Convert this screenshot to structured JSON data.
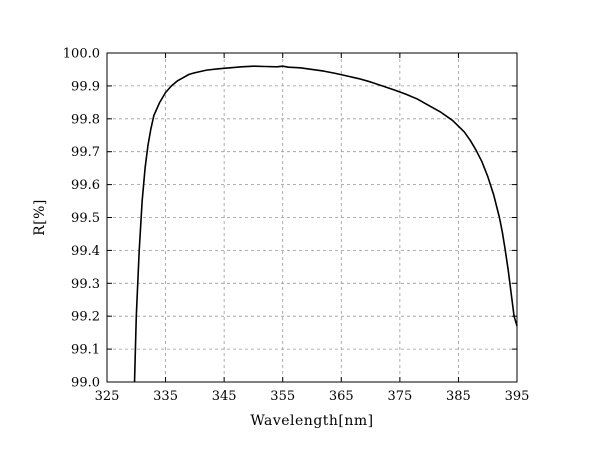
{
  "chart_data": {
    "type": "line",
    "xlabel": "Wavelength[nm]",
    "ylabel": "R[%]",
    "xlim": [
      325,
      395
    ],
    "ylim": [
      99.0,
      100.0
    ],
    "x_ticks": [
      "325",
      "335",
      "345",
      "355",
      "365",
      "375",
      "385",
      "395"
    ],
    "y_ticks": [
      "99.0",
      "99.1",
      "99.2",
      "99.3",
      "99.4",
      "99.5",
      "99.6",
      "99.7",
      "99.8",
      "99.9",
      "100.0"
    ],
    "grid": true,
    "grid_style": "dashed",
    "line_color": "#000000",
    "series": [
      {
        "x": [
          329.7,
          330.0,
          330.5,
          331.0,
          331.5,
          332.0,
          332.5,
          333.0,
          334.0,
          335.0,
          336.0,
          337.0,
          338.0,
          339.0,
          340.0,
          342.0,
          344.0,
          346.0,
          348.0,
          350.0,
          352.0,
          354.0,
          355.0,
          356.0,
          358.0,
          360.0,
          362.0,
          364.0,
          366.0,
          368.0,
          370.0,
          372.0,
          374.0,
          376.0,
          378.0,
          380.0,
          382.0,
          384.0,
          386.0,
          387.0,
          388.0,
          389.0,
          390.0,
          391.0,
          392.0,
          392.5,
          393.0,
          393.5,
          394.0,
          394.5,
          395.0
        ],
        "y": [
          99.0,
          99.2,
          99.4,
          99.55,
          99.65,
          99.72,
          99.77,
          99.81,
          99.85,
          99.88,
          99.9,
          99.915,
          99.925,
          99.935,
          99.94,
          99.948,
          99.952,
          99.955,
          99.958,
          99.96,
          99.959,
          99.958,
          99.96,
          99.957,
          99.955,
          99.95,
          99.945,
          99.938,
          99.93,
          99.922,
          99.912,
          99.9,
          99.888,
          99.875,
          99.86,
          99.84,
          99.82,
          99.795,
          99.76,
          99.735,
          99.705,
          99.67,
          99.625,
          99.57,
          99.5,
          99.455,
          99.4,
          99.34,
          99.27,
          99.2,
          99.17
        ]
      }
    ]
  }
}
